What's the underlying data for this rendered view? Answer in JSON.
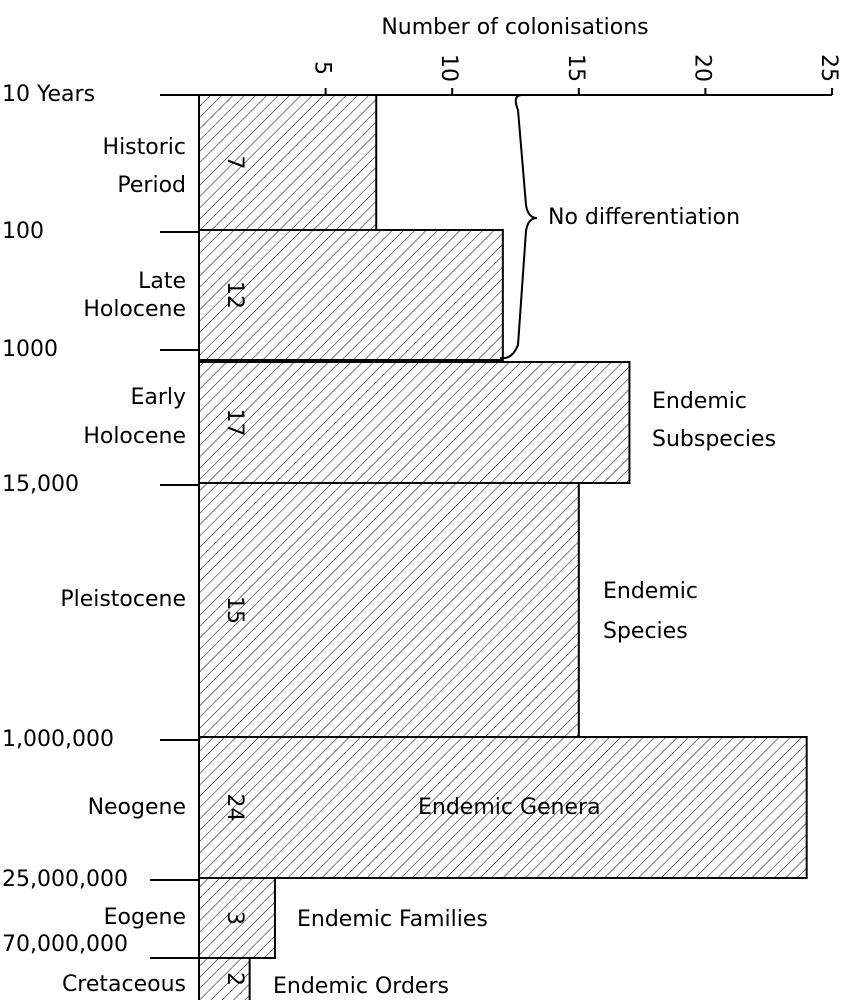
{
  "chart_data": {
    "type": "bar",
    "orientation": "horizontal",
    "x_label": "Number of colonisations",
    "xlim": [
      0,
      25
    ],
    "xticks": [
      5,
      10,
      15,
      20,
      25
    ],
    "boundaries": [
      "10 Years",
      "100",
      "1000",
      "15,000",
      "1,000,000",
      "25,000,000",
      "70,000,000"
    ],
    "categories": [
      [
        "Historic",
        "Period"
      ],
      [
        "Late",
        "Holocene"
      ],
      [
        "Early",
        "Holocene"
      ],
      [
        "Pleistocene"
      ],
      [
        "Neogene"
      ],
      [
        "Eogene"
      ],
      [
        "Cretaceous"
      ]
    ],
    "values": [
      7,
      12,
      17,
      15,
      24,
      3,
      2
    ],
    "color": "#000000",
    "annotations": [
      [
        "No differentiation"
      ],
      [
        "Endemic",
        "Subspecies"
      ],
      [
        "Endemic",
        "Species"
      ],
      [
        "Endemic Genera"
      ],
      [
        "Endemic Families"
      ],
      [
        "Endemic Orders"
      ]
    ]
  }
}
